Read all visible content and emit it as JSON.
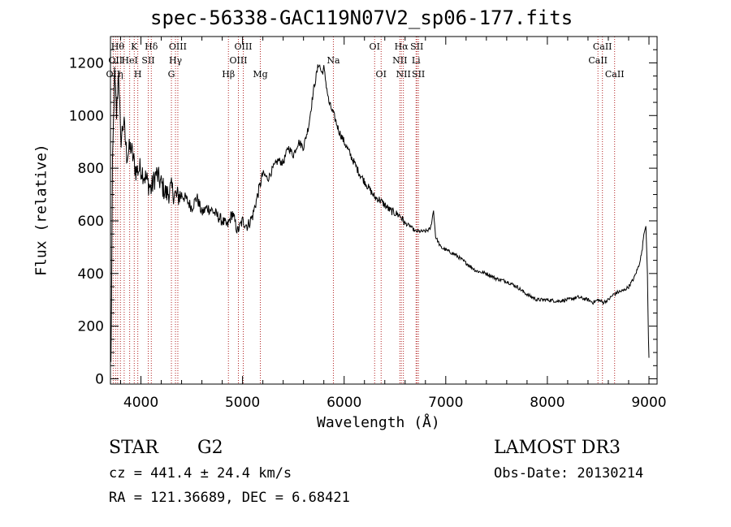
{
  "chart_data": {
    "type": "line",
    "title": "spec-56338-GAC119N07V2_sp06-177.fits",
    "xlabel": "Wavelength (Å)",
    "ylabel": "Flux (relative)",
    "xlim": [
      3700,
      9080
    ],
    "ylim": [
      -20,
      1300
    ],
    "xticks": [
      4000,
      5000,
      6000,
      7000,
      8000,
      9000
    ],
    "yticks": [
      0,
      200,
      400,
      600,
      800,
      1000,
      1200
    ],
    "series": [
      {
        "name": "flux",
        "x": [
          3705,
          3720,
          3740,
          3760,
          3780,
          3800,
          3830,
          3860,
          3900,
          3950,
          4000,
          4050,
          4100,
          4150,
          4200,
          4250,
          4300,
          4350,
          4400,
          4450,
          4500,
          4550,
          4600,
          4650,
          4700,
          4750,
          4800,
          4850,
          4900,
          4950,
          5000,
          5050,
          5100,
          5150,
          5200,
          5250,
          5300,
          5350,
          5400,
          5450,
          5500,
          5550,
          5600,
          5650,
          5700,
          5750,
          5780,
          5800,
          5850,
          5900,
          5950,
          6000,
          6050,
          6100,
          6150,
          6200,
          6250,
          6300,
          6350,
          6400,
          6450,
          6500,
          6550,
          6600,
          6650,
          6700,
          6750,
          6800,
          6850,
          6880,
          6900,
          6950,
          7000,
          7100,
          7200,
          7300,
          7400,
          7500,
          7600,
          7700,
          7800,
          7900,
          8000,
          8100,
          8200,
          8300,
          8400,
          8450,
          8500,
          8550,
          8600,
          8650,
          8700,
          8750,
          8800,
          8850,
          8900,
          8930,
          8950,
          8970,
          8985,
          8995,
          9000
        ],
        "y": [
          50,
          800,
          1150,
          1000,
          1180,
          900,
          980,
          850,
          880,
          790,
          800,
          760,
          720,
          780,
          740,
          700,
          720,
          690,
          700,
          680,
          650,
          690,
          630,
          650,
          640,
          620,
          600,
          580,
          630,
          560,
          600,
          580,
          620,
          700,
          780,
          760,
          800,
          830,
          820,
          880,
          850,
          900,
          880,
          960,
          1100,
          1200,
          1160,
          1180,
          1050,
          1000,
          940,
          900,
          860,
          820,
          780,
          750,
          720,
          690,
          680,
          660,
          640,
          630,
          620,
          590,
          580,
          560,
          560,
          560,
          570,
          640,
          540,
          500,
          490,
          470,
          440,
          410,
          400,
          380,
          370,
          350,
          320,
          300,
          300,
          295,
          300,
          310,
          300,
          290,
          300,
          290,
          300,
          320,
          330,
          335,
          350,
          380,
          430,
          480,
          550,
          580,
          400,
          150,
          80
        ]
      }
    ],
    "lines": [
      {
        "x": 3727,
        "label": "OII",
        "row": 2
      },
      {
        "x": 3750,
        "label": "OII",
        "row": 1
      },
      {
        "x": 3771,
        "label": "Hθ",
        "row": 0
      },
      {
        "x": 3798,
        "label": "η",
        "row": 2
      },
      {
        "x": 3835,
        "label": "",
        "row": 0
      },
      {
        "x": 3889,
        "label": "HeI",
        "row": 1
      },
      {
        "x": 3934,
        "label": "K",
        "row": 0
      },
      {
        "x": 3969,
        "label": "H",
        "row": 2
      },
      {
        "x": 4072,
        "label": "SII",
        "row": 1
      },
      {
        "x": 4102,
        "label": "Hδ",
        "row": 0
      },
      {
        "x": 4300,
        "label": "G",
        "row": 2
      },
      {
        "x": 4340,
        "label": "Hγ",
        "row": 1
      },
      {
        "x": 4363,
        "label": "OIII",
        "row": 0
      },
      {
        "x": 4861,
        "label": "Hβ",
        "row": 2
      },
      {
        "x": 4959,
        "label": "OIII",
        "row": 1
      },
      {
        "x": 5007,
        "label": "OIII",
        "row": 0
      },
      {
        "x": 5175,
        "label": "Mg",
        "row": 2
      },
      {
        "x": 5894,
        "label": "Na",
        "row": 1
      },
      {
        "x": 6300,
        "label": "OI",
        "row": 0
      },
      {
        "x": 6364,
        "label": "OI",
        "row": 2
      },
      {
        "x": 6548,
        "label": "NII",
        "row": 1
      },
      {
        "x": 6563,
        "label": "Hα",
        "row": 0
      },
      {
        "x": 6583,
        "label": "NII",
        "row": 2
      },
      {
        "x": 6708,
        "label": "Li",
        "row": 1
      },
      {
        "x": 6716,
        "label": "SII",
        "row": 0
      },
      {
        "x": 6731,
        "label": "SII",
        "row": 2
      },
      {
        "x": 8498,
        "label": "CaII",
        "row": 1
      },
      {
        "x": 8542,
        "label": "CaII",
        "row": 0
      },
      {
        "x": 8662,
        "label": "CaII",
        "row": 2
      }
    ]
  },
  "info": {
    "class": "STAR",
    "subclass": "G2",
    "survey": "LAMOST DR3",
    "cz": "cz = 441.4 ± 24.4 km/s",
    "obs_date": "Obs-Date: 20130214",
    "radec": "RA = 121.36689, DEC =   6.68421"
  }
}
